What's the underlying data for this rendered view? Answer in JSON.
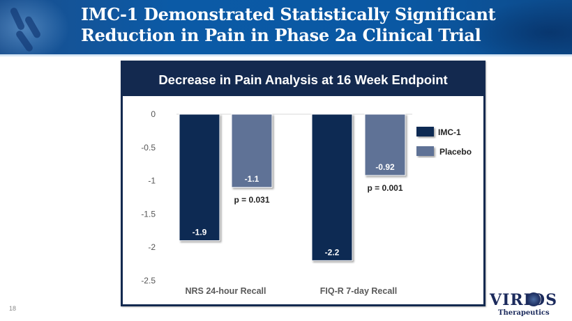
{
  "slide": {
    "title_line1": "IMC-1 Demonstrated Statistically Significant",
    "title_line2": "Reduction in Pain in Phase 2a Clinical Trial",
    "page_number": "18",
    "logo": {
      "name": "VIRIOS",
      "subtitle": "Therapeutics"
    },
    "colors": {
      "banner": "#0b5aa6",
      "frame": "#13294f",
      "imc1": "#112a52",
      "placebo": "#5f7296"
    }
  },
  "chart_data": {
    "type": "bar",
    "title": "Decrease in Pain Analysis at 16 Week Endpoint",
    "categories": [
      "NRS 24-hour Recall",
      "FIQ-R 7-day Recall"
    ],
    "series": [
      {
        "name": "IMC-1",
        "values": [
          -1.9,
          -2.2
        ],
        "labels": [
          "-1.9",
          "-2.2"
        ],
        "color": "#112a52"
      },
      {
        "name": "Placebo",
        "values": [
          -1.1,
          -0.92
        ],
        "labels": [
          "-1.1",
          "-0.92"
        ],
        "color": "#5f7296"
      }
    ],
    "annotations": [
      "p = 0.031",
      "p = 0.001"
    ],
    "yticks": [
      0,
      -0.5,
      -1,
      -1.5,
      -2,
      -2.5
    ],
    "ytick_labels": [
      "0",
      "-0.5",
      "-1",
      "-1.5",
      "-2",
      "-2.5"
    ],
    "ylim": [
      -2.5,
      0
    ],
    "xlabel": "",
    "ylabel": "",
    "grid": false,
    "legend": "right"
  }
}
